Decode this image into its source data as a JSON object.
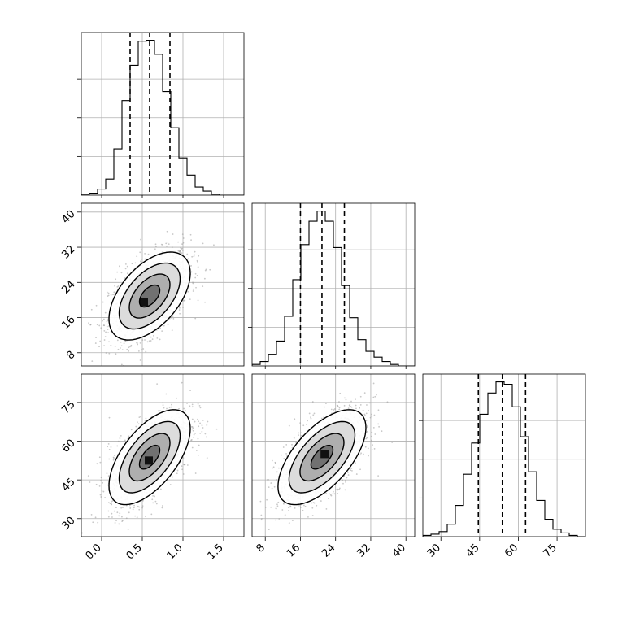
{
  "chart_data": {
    "type": "corner",
    "grid": true,
    "parameters": [
      {
        "range": [
          -0.25,
          1.75
        ],
        "ticks": [
          0.0,
          0.5,
          1.0,
          1.5
        ],
        "tick_labels": [
          "0.0",
          "0.5",
          "1.0",
          "1.5"
        ],
        "quantiles": [
          0.35,
          0.59,
          0.84
        ],
        "hist_edges": [
          -0.25,
          -0.15,
          -0.05,
          0.05,
          0.15,
          0.25,
          0.35,
          0.45,
          0.55,
          0.65,
          0.75,
          0.85,
          0.95,
          1.05,
          1.15,
          1.25,
          1.35,
          1.45,
          1.55,
          1.65,
          1.75
        ],
        "hist_counts": [
          1,
          2,
          6,
          16,
          46,
          94,
          129,
          153,
          154,
          140,
          103,
          67,
          37,
          20,
          8,
          4,
          1,
          0,
          0,
          0
        ]
      },
      {
        "range": [
          5,
          42
        ],
        "ticks": [
          8,
          16,
          24,
          32,
          40
        ],
        "tick_labels": [
          "8",
          "16",
          "24",
          "32",
          "40"
        ],
        "quantiles": [
          16.0,
          20.9,
          26.0
        ],
        "hist_edges": [
          5.0,
          6.85,
          8.7,
          10.55,
          12.4,
          14.25,
          16.1,
          17.95,
          19.8,
          21.65,
          23.5,
          25.35,
          27.2,
          29.05,
          30.9,
          32.75,
          34.6,
          36.45,
          38.3,
          40.15,
          42.0
        ],
        "hist_counts": [
          1,
          3,
          8,
          17,
          34,
          59,
          83,
          99,
          106,
          99,
          81,
          55,
          33,
          18,
          10,
          6,
          3,
          1,
          0,
          0
        ]
      },
      {
        "range": [
          23,
          86
        ],
        "ticks": [
          30,
          45,
          60,
          75
        ],
        "tick_labels": [
          "30",
          "45",
          "60",
          "75"
        ],
        "quantiles": [
          44.5,
          53.8,
          62.8
        ],
        "hist_edges": [
          23.0,
          26.15,
          29.3,
          32.45,
          35.6,
          38.75,
          41.9,
          45.05,
          48.2,
          51.35,
          54.5,
          57.65,
          60.8,
          63.95,
          67.1,
          70.25,
          73.4,
          76.55,
          79.7,
          82.85,
          86.0
        ],
        "hist_counts": [
          1,
          2,
          4,
          10,
          25,
          50,
          75,
          98,
          115,
          124,
          122,
          104,
          80,
          52,
          29,
          14,
          6,
          3,
          1,
          0
        ]
      }
    ],
    "pairs": [
      {
        "x_param": 0,
        "y_param": 1,
        "mean": [
          0.59,
          20.9
        ],
        "std": [
          0.25,
          5.0
        ],
        "corr": 0.52,
        "density_peak": [
          0.52,
          19.5
        ]
      },
      {
        "x_param": 0,
        "y_param": 2,
        "mean": [
          0.59,
          53.8
        ],
        "std": [
          0.25,
          9.2
        ],
        "corr": 0.6,
        "density_peak": [
          0.58,
          52.5
        ]
      },
      {
        "x_param": 1,
        "y_param": 2,
        "mean": [
          20.9,
          53.8
        ],
        "std": [
          5.0,
          9.2
        ],
        "corr": 0.62,
        "density_peak": [
          21.5,
          55.0
        ]
      }
    ],
    "contour_levels_sigma": [
      0.5,
      1.0,
      1.5,
      2.0
    ]
  }
}
